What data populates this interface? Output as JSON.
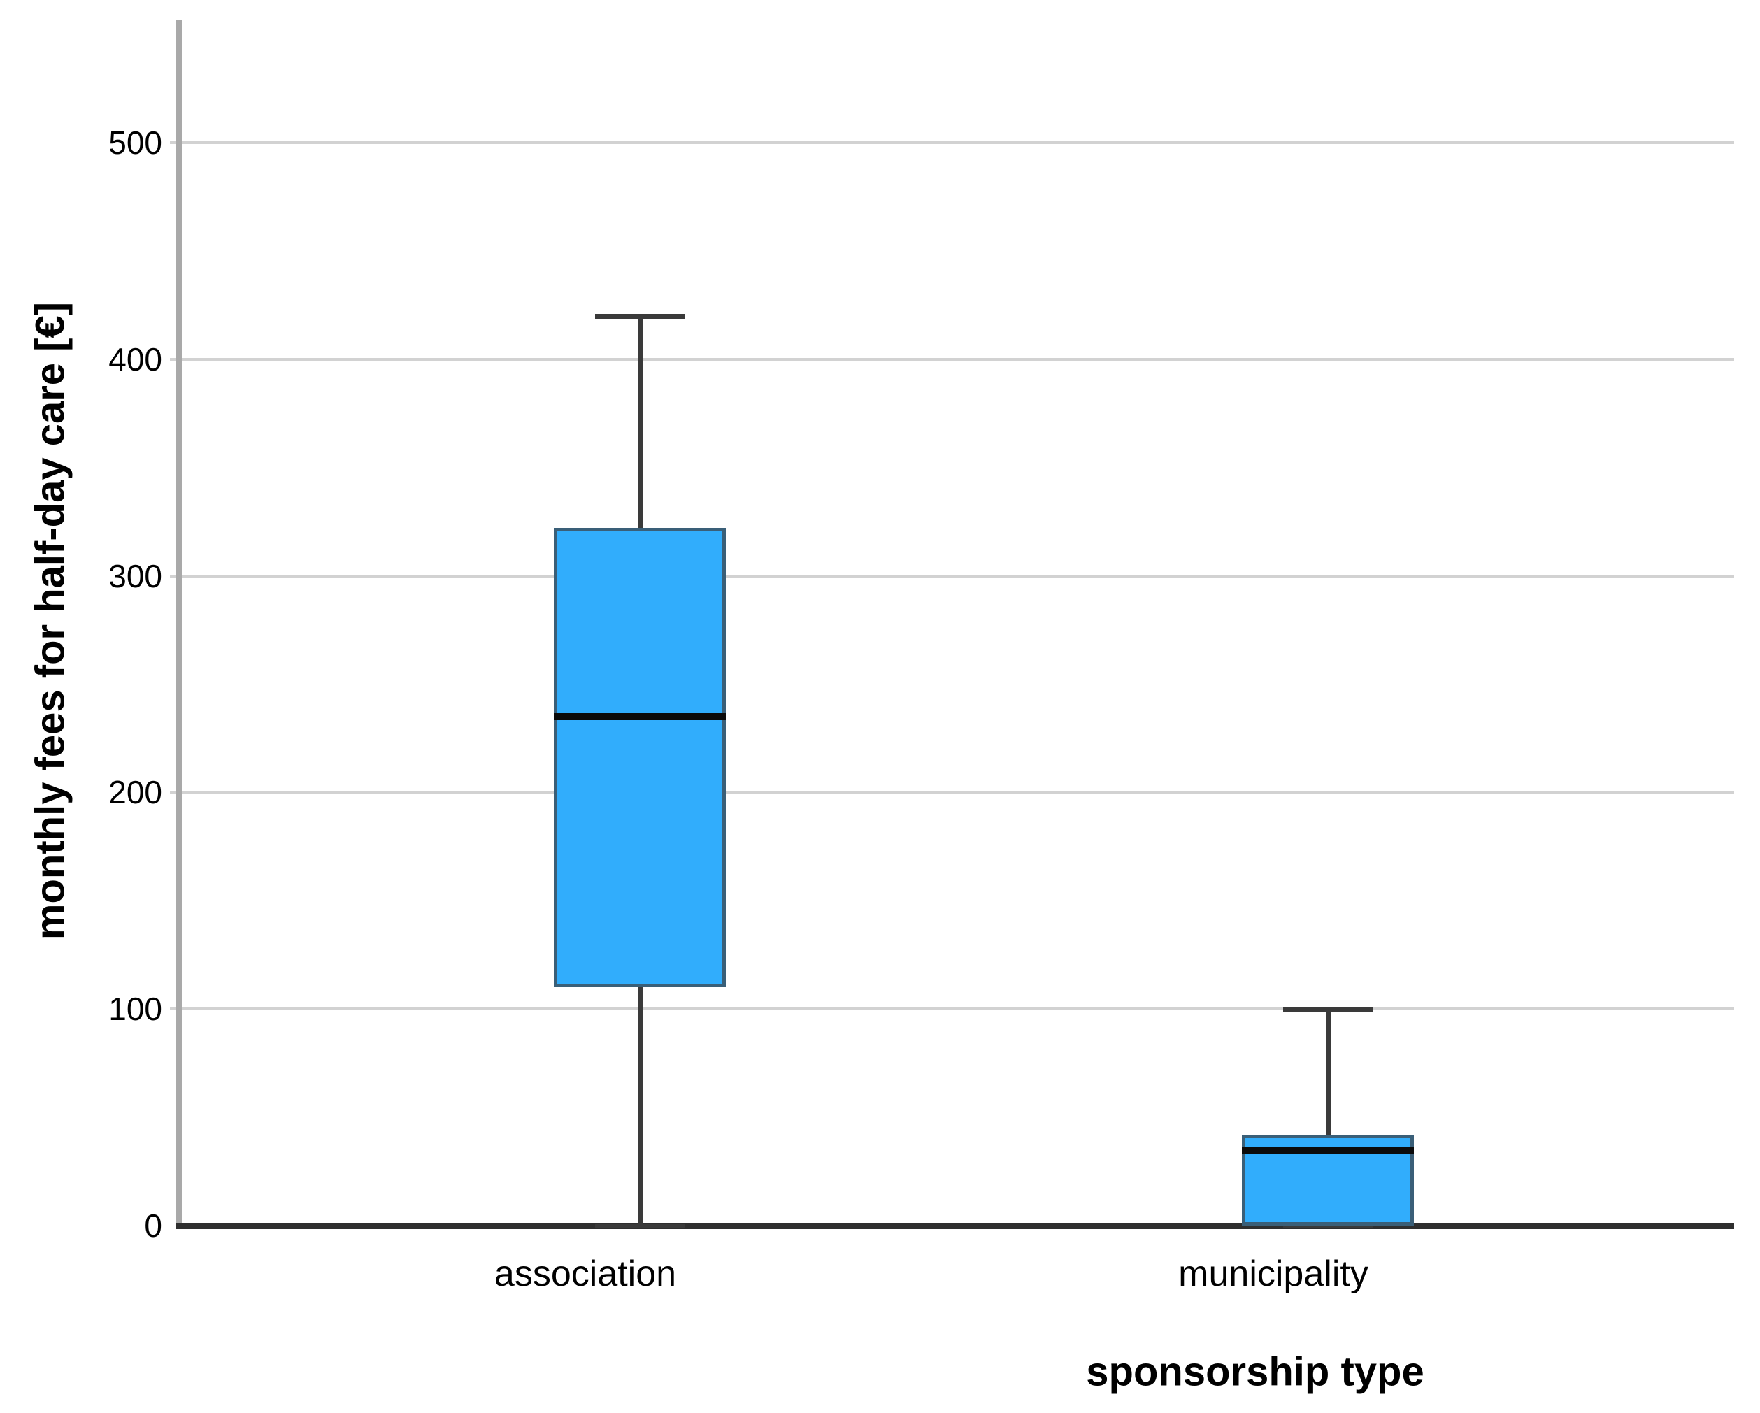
{
  "chart_data": {
    "type": "boxplot",
    "title": "",
    "xlabel": "sponsorship type",
    "ylabel": "monthly fees for half-day care [€]",
    "ylim": [
      0,
      555
    ],
    "yticks": [
      0,
      100,
      200,
      300,
      400,
      500
    ],
    "grid": "horizontal-only",
    "legend": "none",
    "categories": [
      "association",
      "municipality"
    ],
    "series": [
      {
        "category": "association",
        "min": 0,
        "q1": 110,
        "median": 235,
        "q3": 322,
        "max": 420
      },
      {
        "category": "municipality",
        "min": 0,
        "q1": 0,
        "median": 35,
        "q3": 42,
        "max": 100
      }
    ],
    "colors": {
      "box_fill": "#31ADFC",
      "box_border": "#3A5F78",
      "median_line": "#0B0B0B",
      "whisker": "#3A3A3A",
      "gridline": "#D2D2D2",
      "y_axis_line": "#A9A9A9",
      "x_axis_line": "#2F2F2F",
      "text": "#000000"
    }
  }
}
